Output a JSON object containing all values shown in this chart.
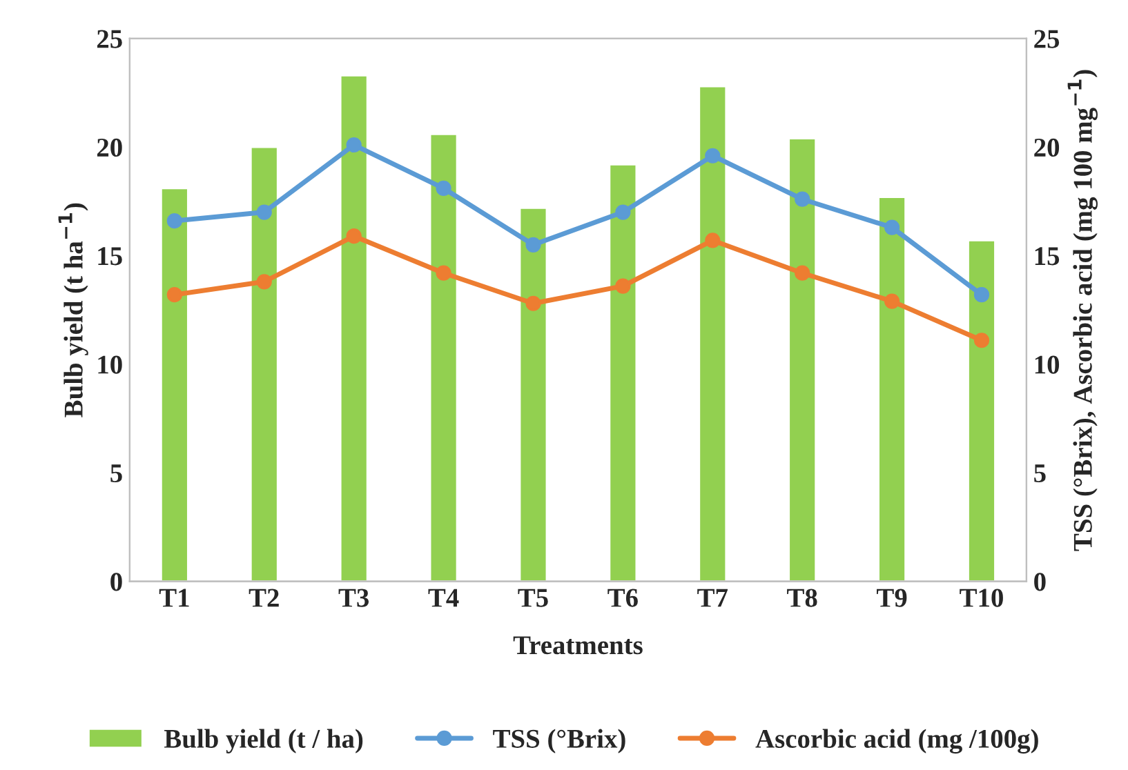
{
  "chart_data": {
    "type": "bar",
    "xlabel": "Treatments",
    "ylabel": "Bulb yield (t ha$^{−1}$)",
    "y2label": "TSS (°Brix), Ascorbic acid (mg 100 mg$^{−1}$)",
    "categories": [
      "T1",
      "T2",
      "T3",
      "T4",
      "T5",
      "T6",
      "T7",
      "T8",
      "T9",
      "T10"
    ],
    "series": [
      {
        "name": "Bulb yield (t / ha)",
        "color": "#92d050",
        "values": [
          18.1,
          20.0,
          23.3,
          20.6,
          17.2,
          19.2,
          22.8,
          20.4,
          17.7,
          15.7
        ]
      },
      {
        "name": "TSS (°Brix)",
        "type": "line",
        "axis": "y2",
        "color": "#5b9bd5",
        "marker": "circle",
        "values": [
          16.6,
          17.0,
          20.1,
          18.1,
          15.5,
          17.0,
          19.6,
          17.6,
          16.3,
          13.2
        ]
      },
      {
        "name": "Ascorbic acid (mg /100g)",
        "type": "line",
        "axis": "y2",
        "color": "#ed7d31",
        "marker": "circle",
        "values": [
          13.2,
          13.8,
          15.9,
          14.2,
          12.8,
          13.6,
          15.7,
          14.2,
          12.9,
          11.1
        ]
      }
    ],
    "ylim": [
      0,
      25
    ],
    "yticks": [
      0,
      5,
      10,
      15,
      20,
      25
    ],
    "y2lim": [
      0,
      25
    ],
    "y2ticks": [
      0,
      5,
      10,
      15,
      20,
      25
    ],
    "grid": false,
    "legend": "bottom"
  }
}
